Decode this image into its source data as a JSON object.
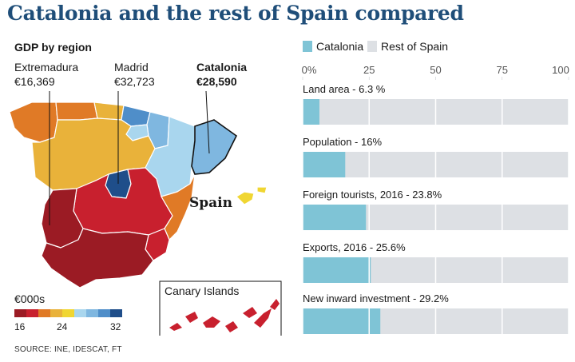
{
  "header": {
    "title": "Catalonia and the rest of Spain compared",
    "subtitle": "GDP by region"
  },
  "map": {
    "callouts": [
      {
        "name": "Extremadura",
        "value": "€16,369"
      },
      {
        "name": "Madrid",
        "value": "€32,723"
      },
      {
        "name": "Catalonia",
        "value": "€28,590"
      }
    ],
    "country_label": "Spain",
    "inset_label": "Canary Islands",
    "legend": {
      "title": "€000s",
      "ticks": [
        "16",
        "24",
        "32"
      ],
      "colors": [
        "#9b1b24",
        "#c8202e",
        "#e07a26",
        "#e9b23a",
        "#f0d632",
        "#a9d6ee",
        "#7fb7e0",
        "#4f8ec9",
        "#1f4e8a"
      ]
    },
    "region_colors": {
      "galicia": "#e07a26",
      "asturias": "#e07a26",
      "cantabria": "#e9b23a",
      "basque": "#4f8ec9",
      "navarra": "#7fb7e0",
      "la_rioja": "#a9d6ee",
      "castilla_leon": "#e9b23a",
      "aragon": "#a9d6ee",
      "catalonia": "#7fb7e0",
      "madrid": "#1f4e8a",
      "castilla_mancha": "#c8202e",
      "extremadura": "#9b1b24",
      "valencia": "#e07a26",
      "murcia": "#c8202e",
      "andalusia": "#9b1b24",
      "balearic": "#f0d632",
      "canary": "#c8202e"
    }
  },
  "bar_legend": {
    "catalonia_label": "Catalonia",
    "catalonia_color": "#7fc4d6",
    "rest_label": "Rest of Spain",
    "rest_color": "#dde0e4"
  },
  "chart_data": {
    "type": "bar",
    "orientation": "horizontal",
    "stacked_percent": true,
    "xlim": [
      0,
      100
    ],
    "xticks": [
      "0%",
      "25",
      "50",
      "75",
      "100"
    ],
    "categories": [
      "Land area - 6.3 %",
      "Population - 16%",
      "Foreign tourists, 2016 - 23.8%",
      "Exports, 2016 - 25.6%",
      "New inward investment - 29.2%"
    ],
    "series": [
      {
        "name": "Catalonia",
        "values": [
          6.3,
          16,
          23.8,
          25.6,
          29.2
        ]
      },
      {
        "name": "Rest of Spain",
        "values": [
          93.7,
          84,
          76.2,
          74.4,
          70.8
        ]
      }
    ],
    "grid": true
  },
  "footer": {
    "source": "SOURCE: INE, IDESCAT, FT"
  }
}
